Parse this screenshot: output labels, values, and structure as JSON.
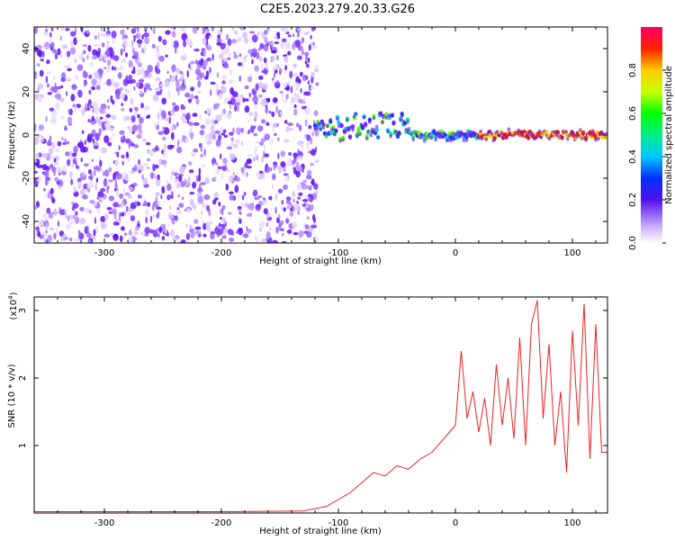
{
  "title": "C2E5.2023.279.20.33.G26",
  "chart_data": [
    {
      "type": "heatmap",
      "xlabel": "Height of straight line (km)",
      "ylabel": "Frequency (Hz)",
      "xlim": [
        -360,
        130
      ],
      "ylim": [
        -50,
        50
      ],
      "x_ticks": [
        -300,
        -200,
        -100,
        0,
        100
      ],
      "y_ticks": [
        -40,
        -20,
        0,
        20,
        40
      ],
      "grid": false,
      "colorbar": {
        "label": "Normalized spectral amplitude",
        "range": [
          0,
          1
        ],
        "ticks": [
          0.0,
          0.2,
          0.4,
          0.6,
          0.8
        ]
      },
      "features": [
        {
          "description": "noise",
          "x_range": [
            -360,
            -118
          ],
          "freq_range": [
            -50,
            50
          ],
          "amplitude": 0.1
        },
        {
          "description": "signal",
          "x_range": [
            -120,
            130
          ],
          "freq_center": [
            2,
            0
          ],
          "amplitude": 0.8
        }
      ]
    },
    {
      "type": "line",
      "xlabel": "Height of straight line (km)",
      "ylabel": "SNR (10 * v/v)",
      "y_multiplier": "(x10",
      "y_multiplier_exp": "4",
      "xlim": [
        -360,
        130
      ],
      "ylim": [
        0,
        3.2
      ],
      "x_ticks": [
        -300,
        -200,
        -100,
        0,
        100
      ],
      "y_ticks": [
        1,
        2,
        3
      ],
      "series_color": "#ee2222",
      "x": [
        -360,
        -300,
        -200,
        -130,
        -110,
        -100,
        -90,
        -80,
        -70,
        -60,
        -50,
        -40,
        -30,
        -20,
        -10,
        0,
        5,
        10,
        15,
        20,
        25,
        30,
        35,
        40,
        45,
        50,
        55,
        60,
        65,
        70,
        75,
        80,
        85,
        90,
        95,
        100,
        105,
        110,
        115,
        120,
        125,
        130
      ],
      "y": [
        0.02,
        0.02,
        0.02,
        0.03,
        0.1,
        0.2,
        0.3,
        0.45,
        0.6,
        0.55,
        0.7,
        0.65,
        0.8,
        0.9,
        1.1,
        1.3,
        2.4,
        1.4,
        1.8,
        1.2,
        1.7,
        1.0,
        2.2,
        1.3,
        2.0,
        1.1,
        2.6,
        1.0,
        2.8,
        3.15,
        1.4,
        2.5,
        1.0,
        1.8,
        0.6,
        2.7,
        1.3,
        3.1,
        0.8,
        2.8,
        0.9,
        0.9
      ]
    }
  ]
}
